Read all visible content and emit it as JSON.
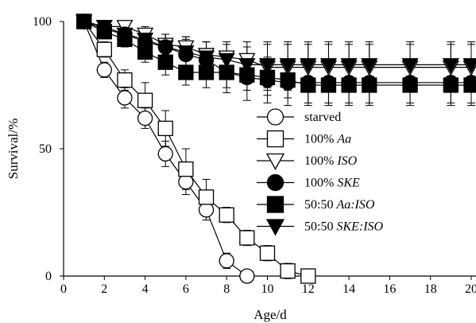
{
  "chart_data": {
    "type": "line",
    "xlabel": "Age/d",
    "ylabel": "Survival/%",
    "xlim": [
      0,
      20
    ],
    "ylim": [
      0,
      100
    ],
    "xticks": [
      "0",
      "2",
      "4",
      "6",
      "8",
      "10",
      "12",
      "14",
      "16",
      "18",
      "20"
    ],
    "yticks": [
      "0",
      "50",
      "100"
    ],
    "grid": false,
    "legend_position": "right",
    "series": [
      {
        "name": "starved",
        "name_italic": "",
        "marker": "circle-open",
        "x": [
          1,
          2,
          3,
          4,
          5,
          6,
          7,
          8,
          9
        ],
        "y": [
          100,
          81,
          70,
          62,
          48,
          37,
          26,
          6,
          0
        ],
        "err": [
          0,
          3,
          4,
          4,
          5,
          5,
          4,
          3,
          0
        ]
      },
      {
        "name": "100% ",
        "name_italic": "Aa",
        "marker": "square-open",
        "x": [
          1,
          2,
          3,
          4,
          5,
          6,
          7,
          8,
          9,
          10,
          11,
          12
        ],
        "y": [
          100,
          89,
          77,
          69,
          58,
          42,
          31,
          24,
          15,
          9,
          2,
          0
        ],
        "err": [
          0,
          3,
          4,
          7,
          7,
          8,
          7,
          3,
          3,
          3,
          3,
          0
        ]
      },
      {
        "name": "100% ",
        "name_italic": "ISO",
        "marker": "triangle-down-open",
        "x": [
          1,
          2,
          3,
          4,
          5,
          6,
          7,
          8,
          9,
          10,
          11,
          12,
          13,
          14,
          15,
          17,
          19,
          20
        ],
        "y": [
          100,
          98,
          98,
          95,
          91,
          90,
          87,
          86,
          85,
          82,
          82,
          82,
          82,
          82,
          82,
          82,
          82,
          82
        ],
        "err": [
          0,
          2,
          2,
          3,
          4,
          4,
          5,
          6,
          7,
          9,
          9,
          9,
          9,
          9,
          9,
          9,
          9,
          9
        ]
      },
      {
        "name": "100% ",
        "name_italic": "SKE",
        "marker": "circle-filled",
        "x": [
          1,
          2,
          3,
          4,
          5,
          6,
          7,
          8,
          9,
          10,
          11,
          12,
          13,
          14,
          15,
          17,
          19,
          20
        ],
        "y": [
          100,
          97,
          95,
          92,
          90,
          87,
          85,
          80,
          78,
          77,
          76,
          76,
          76,
          76,
          76,
          76,
          76,
          76
        ],
        "err": [
          0,
          2,
          3,
          4,
          5,
          6,
          7,
          8,
          9,
          9,
          9,
          9,
          9,
          9,
          9,
          9,
          9,
          9
        ]
      },
      {
        "name": "50:50 ",
        "name_italic": "Aa:ISO",
        "marker": "square-filled",
        "x": [
          1,
          2,
          3,
          4,
          5,
          6,
          7,
          8,
          9,
          10,
          11,
          12,
          13,
          14,
          15,
          17,
          19,
          20
        ],
        "y": [
          100,
          96,
          93,
          88,
          84,
          80,
          80,
          80,
          79,
          78,
          77,
          75,
          75,
          75,
          75,
          75,
          75,
          75
        ],
        "err": [
          0,
          2,
          3,
          4,
          5,
          5,
          6,
          6,
          6,
          7,
          7,
          7,
          7,
          7,
          7,
          7,
          7,
          7
        ]
      },
      {
        "name": "50:50 ",
        "name_italic": "SKE:ISO",
        "marker": "triangle-down-filled",
        "x": [
          1,
          2,
          3,
          4,
          5,
          6,
          7,
          8,
          9,
          10,
          11,
          12,
          13,
          14,
          15,
          17,
          19,
          20
        ],
        "y": [
          100,
          98,
          95,
          93,
          90,
          88,
          86,
          85,
          83,
          83,
          83,
          83,
          83,
          83,
          83,
          83,
          83,
          83
        ],
        "err": [
          0,
          2,
          3,
          4,
          5,
          6,
          6,
          6,
          7,
          9,
          9,
          9,
          9,
          9,
          9,
          9,
          9,
          9
        ]
      }
    ]
  }
}
